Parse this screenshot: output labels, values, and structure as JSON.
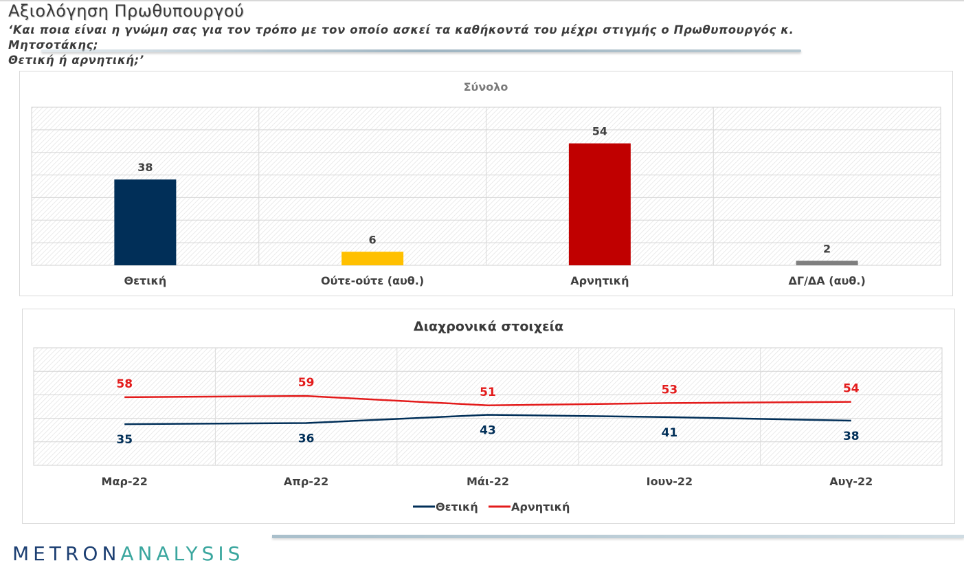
{
  "header": {
    "title": "Αξιολόγηση Πρωθυπουργού",
    "subtitle_line1": "‘Και ποια είναι η γνώμη σας για τον τρόπο με τον οποίο ασκεί τα καθήκοντά του μέχρι στιγμής ο Πρωθυπουργός κ. Μητσοτάκης;",
    "subtitle_line2": "Θετική ή αρνητική;’"
  },
  "logo": {
    "part1": "METRON",
    "part2": "ANALYSIS"
  },
  "colors": {
    "positive": "#012f58",
    "neither": "#ffc000",
    "negative": "#c00000",
    "dk": "#7f7f7f",
    "negative_line": "#e31b1b"
  },
  "chart_data": [
    {
      "type": "bar",
      "title": "Σύνολο",
      "categories": [
        "Θετική",
        "Ούτε-ούτε (αυθ.)",
        "Αρνητική",
        "ΔΓ/ΔΑ (αυθ.)"
      ],
      "values": [
        38,
        6,
        54,
        2
      ],
      "data_labels": [
        "38",
        "6",
        "54",
        "2"
      ],
      "colors": [
        "#012f58",
        "#ffc000",
        "#c00000",
        "#7f7f7f"
      ],
      "ylim": [
        0,
        70
      ],
      "grid": true,
      "legend": "none"
    },
    {
      "type": "line",
      "title": "Διαχρονικά στοιχεία",
      "categories": [
        "Μαρ-22",
        "Απρ-22",
        "Μάι-22",
        "Ιουν-22",
        "Αυγ-22"
      ],
      "series": [
        {
          "name": "Θετική",
          "values": [
            35,
            36,
            43,
            41,
            38
          ],
          "color": "#012f58"
        },
        {
          "name": "Αρνητική",
          "values": [
            58,
            59,
            51,
            53,
            54
          ],
          "color": "#e31b1b"
        }
      ],
      "ylim": [
        0,
        100
      ],
      "grid": true,
      "legend": "bottom"
    }
  ]
}
